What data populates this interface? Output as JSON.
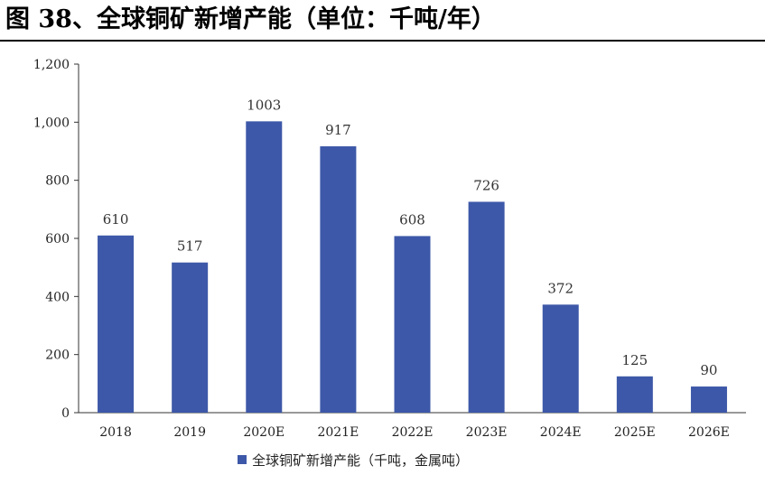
{
  "figure": {
    "title": "图 38、全球铜矿新增产能（单位：千吨/年）"
  },
  "chart_data": {
    "type": "bar",
    "categories": [
      "2018",
      "2019",
      "2020E",
      "2021E",
      "2022E",
      "2023E",
      "2024E",
      "2025E",
      "2026E"
    ],
    "series": [
      {
        "name": "全球铜矿新增产能（千吨，金属吨）",
        "values": [
          610,
          517,
          1003,
          917,
          608,
          726,
          372,
          125,
          90
        ],
        "color": "#3d58a8"
      }
    ],
    "data_labels": [
      "610",
      "517",
      "1003",
      "917",
      "608",
      "726",
      "372",
      "125",
      "90"
    ],
    "y_ticks": [
      "0",
      "200",
      "400",
      "600",
      "800",
      "1,000",
      "1,200"
    ],
    "ylim": [
      0,
      1200
    ],
    "xlabel": "",
    "ylabel": "",
    "grid": false,
    "legend_position": "bottom"
  }
}
